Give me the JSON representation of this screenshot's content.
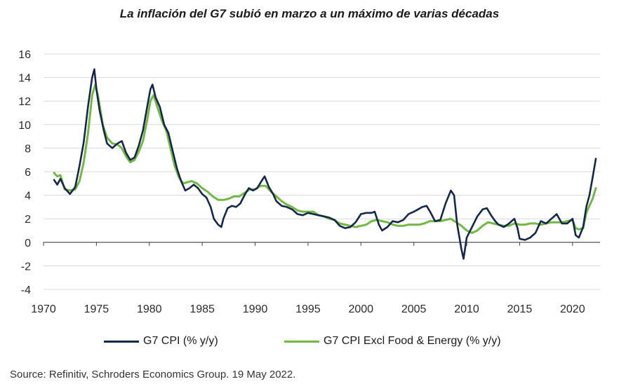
{
  "chart_data": {
    "type": "line",
    "title": "La inflación del G7 subió en marzo a un máximo de varias décadas",
    "xlabel": "",
    "ylabel": "",
    "xlim": [
      1970,
      2022.6
    ],
    "ylim": [
      -4,
      16
    ],
    "yticks": [
      16,
      14,
      12,
      10,
      8,
      6,
      4,
      2,
      0,
      -2,
      -4
    ],
    "xticks": [
      1970,
      1975,
      1980,
      1985,
      1990,
      1995,
      2000,
      2005,
      2010,
      2015,
      2020
    ],
    "grid": "horizontal",
    "legend_position": "bottom",
    "series": [
      {
        "name": "G7 CPI (% y/y)",
        "color": "#14284b",
        "points": [
          [
            1971.0,
            5.3
          ],
          [
            1971.3,
            4.9
          ],
          [
            1971.6,
            5.4
          ],
          [
            1972.0,
            4.6
          ],
          [
            1972.5,
            4.1
          ],
          [
            1973.0,
            4.7
          ],
          [
            1973.4,
            6.5
          ],
          [
            1973.8,
            8.5
          ],
          [
            1974.2,
            11.5
          ],
          [
            1974.6,
            14.0
          ],
          [
            1974.8,
            14.7
          ],
          [
            1975.0,
            13.0
          ],
          [
            1975.3,
            11.2
          ],
          [
            1975.7,
            9.5
          ],
          [
            1976.0,
            8.4
          ],
          [
            1976.5,
            8.0
          ],
          [
            1977.0,
            8.4
          ],
          [
            1977.4,
            8.6
          ],
          [
            1977.8,
            7.6
          ],
          [
            1978.2,
            7.0
          ],
          [
            1978.6,
            7.2
          ],
          [
            1979.0,
            8.2
          ],
          [
            1979.4,
            9.5
          ],
          [
            1979.8,
            11.5
          ],
          [
            1980.1,
            13.0
          ],
          [
            1980.3,
            13.4
          ],
          [
            1980.6,
            12.3
          ],
          [
            1981.0,
            11.5
          ],
          [
            1981.4,
            10.0
          ],
          [
            1981.8,
            9.3
          ],
          [
            1982.2,
            7.8
          ],
          [
            1982.6,
            6.3
          ],
          [
            1983.0,
            5.2
          ],
          [
            1983.4,
            4.4
          ],
          [
            1983.8,
            4.6
          ],
          [
            1984.2,
            4.9
          ],
          [
            1984.6,
            4.6
          ],
          [
            1985.0,
            4.1
          ],
          [
            1985.4,
            3.8
          ],
          [
            1985.8,
            3.0
          ],
          [
            1986.1,
            2.0
          ],
          [
            1986.5,
            1.5
          ],
          [
            1986.8,
            1.3
          ],
          [
            1987.0,
            2.0
          ],
          [
            1987.4,
            2.9
          ],
          [
            1987.8,
            3.1
          ],
          [
            1988.2,
            3.0
          ],
          [
            1988.6,
            3.3
          ],
          [
            1989.0,
            4.0
          ],
          [
            1989.4,
            4.6
          ],
          [
            1989.8,
            4.4
          ],
          [
            1990.2,
            4.6
          ],
          [
            1990.6,
            5.2
          ],
          [
            1990.9,
            5.6
          ],
          [
            1991.3,
            4.7
          ],
          [
            1991.7,
            4.1
          ],
          [
            1992.0,
            3.5
          ],
          [
            1992.5,
            3.1
          ],
          [
            1993.0,
            3.0
          ],
          [
            1993.5,
            2.8
          ],
          [
            1994.0,
            2.4
          ],
          [
            1994.5,
            2.3
          ],
          [
            1995.0,
            2.5
          ],
          [
            1995.5,
            2.4
          ],
          [
            1996.0,
            2.3
          ],
          [
            1996.5,
            2.2
          ],
          [
            1997.0,
            2.1
          ],
          [
            1997.5,
            1.9
          ],
          [
            1998.0,
            1.4
          ],
          [
            1998.5,
            1.2
          ],
          [
            1999.0,
            1.3
          ],
          [
            1999.5,
            1.7
          ],
          [
            2000.0,
            2.4
          ],
          [
            2000.5,
            2.5
          ],
          [
            2001.0,
            2.5
          ],
          [
            2001.3,
            2.6
          ],
          [
            2001.7,
            1.5
          ],
          [
            2002.0,
            1.0
          ],
          [
            2002.5,
            1.3
          ],
          [
            2003.0,
            1.8
          ],
          [
            2003.5,
            1.7
          ],
          [
            2004.0,
            1.9
          ],
          [
            2004.5,
            2.4
          ],
          [
            2005.0,
            2.6
          ],
          [
            2005.4,
            2.8
          ],
          [
            2005.8,
            3.0
          ],
          [
            2006.2,
            3.1
          ],
          [
            2006.6,
            2.5
          ],
          [
            2007.0,
            1.8
          ],
          [
            2007.5,
            1.9
          ],
          [
            2008.0,
            3.3
          ],
          [
            2008.5,
            4.4
          ],
          [
            2008.8,
            4.0
          ],
          [
            2009.1,
            1.5
          ],
          [
            2009.5,
            -0.6
          ],
          [
            2009.7,
            -1.4
          ],
          [
            2010.0,
            0.4
          ],
          [
            2010.5,
            1.3
          ],
          [
            2011.0,
            2.2
          ],
          [
            2011.5,
            2.8
          ],
          [
            2011.9,
            2.9
          ],
          [
            2012.3,
            2.3
          ],
          [
            2012.7,
            1.8
          ],
          [
            2013.0,
            1.5
          ],
          [
            2013.5,
            1.3
          ],
          [
            2014.0,
            1.6
          ],
          [
            2014.5,
            2.0
          ],
          [
            2014.8,
            1.2
          ],
          [
            2015.0,
            0.3
          ],
          [
            2015.5,
            0.2
          ],
          [
            2016.0,
            0.4
          ],
          [
            2016.5,
            0.8
          ],
          [
            2017.0,
            1.8
          ],
          [
            2017.5,
            1.6
          ],
          [
            2018.0,
            2.0
          ],
          [
            2018.5,
            2.4
          ],
          [
            2019.0,
            1.6
          ],
          [
            2019.5,
            1.6
          ],
          [
            2020.0,
            2.0
          ],
          [
            2020.3,
            0.6
          ],
          [
            2020.6,
            0.4
          ],
          [
            2021.0,
            1.3
          ],
          [
            2021.3,
            3.0
          ],
          [
            2021.6,
            4.0
          ],
          [
            2021.9,
            5.5
          ],
          [
            2022.2,
            7.1
          ]
        ]
      },
      {
        "name": "G7 CPI Excl Food & Energy (% y/y)",
        "color": "#72b944",
        "points": [
          [
            1971.0,
            5.9
          ],
          [
            1971.3,
            5.6
          ],
          [
            1971.6,
            5.7
          ],
          [
            1972.0,
            4.5
          ],
          [
            1972.5,
            4.4
          ],
          [
            1973.0,
            4.5
          ],
          [
            1973.4,
            5.2
          ],
          [
            1973.8,
            6.8
          ],
          [
            1974.2,
            9.2
          ],
          [
            1974.6,
            12.5
          ],
          [
            1974.9,
            13.4
          ],
          [
            1975.2,
            12.2
          ],
          [
            1975.6,
            10.0
          ],
          [
            1976.0,
            8.9
          ],
          [
            1976.5,
            8.4
          ],
          [
            1977.0,
            8.3
          ],
          [
            1977.4,
            8.0
          ],
          [
            1977.8,
            7.3
          ],
          [
            1978.2,
            6.8
          ],
          [
            1978.6,
            7.0
          ],
          [
            1979.0,
            7.7
          ],
          [
            1979.4,
            8.6
          ],
          [
            1979.8,
            10.4
          ],
          [
            1980.1,
            12.0
          ],
          [
            1980.4,
            12.5
          ],
          [
            1980.8,
            11.4
          ],
          [
            1981.2,
            10.3
          ],
          [
            1981.6,
            9.5
          ],
          [
            1982.0,
            8.0
          ],
          [
            1982.4,
            6.5
          ],
          [
            1982.8,
            5.5
          ],
          [
            1983.2,
            5.0
          ],
          [
            1983.6,
            5.1
          ],
          [
            1984.0,
            5.2
          ],
          [
            1984.5,
            5.0
          ],
          [
            1985.0,
            4.6
          ],
          [
            1985.5,
            4.3
          ],
          [
            1986.0,
            3.9
          ],
          [
            1986.5,
            3.6
          ],
          [
            1987.0,
            3.6
          ],
          [
            1987.5,
            3.7
          ],
          [
            1988.0,
            3.9
          ],
          [
            1988.5,
            3.9
          ],
          [
            1989.0,
            4.2
          ],
          [
            1989.5,
            4.5
          ],
          [
            1990.0,
            4.5
          ],
          [
            1990.5,
            4.8
          ],
          [
            1991.0,
            4.8
          ],
          [
            1991.5,
            4.3
          ],
          [
            1992.0,
            3.9
          ],
          [
            1992.5,
            3.5
          ],
          [
            1993.0,
            3.2
          ],
          [
            1993.5,
            3.0
          ],
          [
            1994.0,
            2.7
          ],
          [
            1994.5,
            2.6
          ],
          [
            1995.0,
            2.6
          ],
          [
            1995.5,
            2.6
          ],
          [
            1996.0,
            2.3
          ],
          [
            1996.5,
            2.2
          ],
          [
            1997.0,
            2.0
          ],
          [
            1997.5,
            1.9
          ],
          [
            1998.0,
            1.6
          ],
          [
            1998.5,
            1.5
          ],
          [
            1999.0,
            1.4
          ],
          [
            1999.5,
            1.3
          ],
          [
            2000.0,
            1.4
          ],
          [
            2000.5,
            1.5
          ],
          [
            2001.0,
            1.8
          ],
          [
            2001.5,
            1.9
          ],
          [
            2002.0,
            1.8
          ],
          [
            2002.5,
            1.7
          ],
          [
            2003.0,
            1.5
          ],
          [
            2003.5,
            1.4
          ],
          [
            2004.0,
            1.4
          ],
          [
            2004.5,
            1.5
          ],
          [
            2005.0,
            1.5
          ],
          [
            2005.5,
            1.5
          ],
          [
            2006.0,
            1.6
          ],
          [
            2006.5,
            1.8
          ],
          [
            2007.0,
            1.8
          ],
          [
            2007.5,
            1.8
          ],
          [
            2008.0,
            1.9
          ],
          [
            2008.5,
            2.0
          ],
          [
            2009.0,
            1.7
          ],
          [
            2009.5,
            1.4
          ],
          [
            2010.0,
            1.0
          ],
          [
            2010.5,
            0.8
          ],
          [
            2011.0,
            1.0
          ],
          [
            2011.5,
            1.4
          ],
          [
            2012.0,
            1.7
          ],
          [
            2012.5,
            1.6
          ],
          [
            2013.0,
            1.5
          ],
          [
            2013.5,
            1.4
          ],
          [
            2014.0,
            1.4
          ],
          [
            2014.5,
            1.6
          ],
          [
            2015.0,
            1.5
          ],
          [
            2015.5,
            1.5
          ],
          [
            2016.0,
            1.6
          ],
          [
            2016.5,
            1.6
          ],
          [
            2017.0,
            1.5
          ],
          [
            2017.5,
            1.6
          ],
          [
            2018.0,
            1.7
          ],
          [
            2018.5,
            1.7
          ],
          [
            2019.0,
            1.7
          ],
          [
            2019.5,
            1.8
          ],
          [
            2020.0,
            1.9
          ],
          [
            2020.3,
            1.2
          ],
          [
            2020.6,
            1.1
          ],
          [
            2021.0,
            1.2
          ],
          [
            2021.3,
            2.5
          ],
          [
            2021.6,
            3.1
          ],
          [
            2021.9,
            3.7
          ],
          [
            2022.2,
            4.6
          ]
        ]
      }
    ],
    "source": "Source: Refinitiv, Schroders Economics Group. 19 May 2022."
  }
}
